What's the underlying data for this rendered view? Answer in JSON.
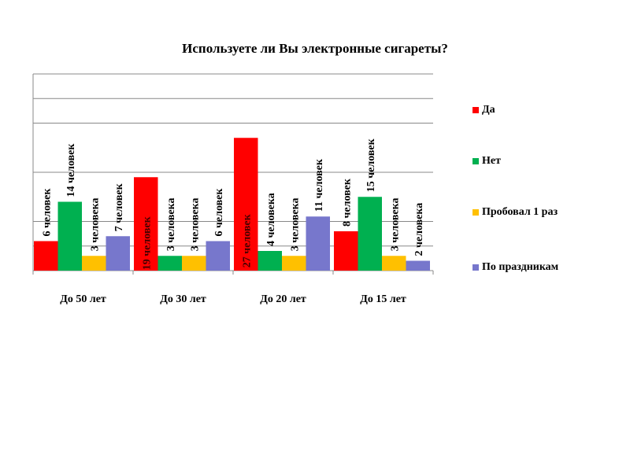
{
  "chart_data": {
    "type": "bar",
    "title": "Используете ли Вы электронные сигареты?",
    "categories": [
      "До 50 лет",
      "До 30 лет",
      "До 20 лет",
      "До 15 лет"
    ],
    "series": [
      {
        "name": "Да",
        "color": "#ff0000",
        "values": [
          6,
          19,
          27,
          8
        ],
        "labels": [
          "6 человек",
          "19 человек",
          "27 человек",
          "8 человек"
        ]
      },
      {
        "name": "Нет",
        "color": "#00b050",
        "values": [
          14,
          3,
          4,
          15
        ],
        "labels": [
          "14 человек",
          "3 человека",
          "4 человека",
          "15 человек"
        ]
      },
      {
        "name": "Пробовал 1 раз",
        "color": "#ffc000",
        "values": [
          3,
          3,
          3,
          3
        ],
        "labels": [
          "3 человека",
          "3 человека",
          "3 человека",
          "3 человека"
        ]
      },
      {
        "name": "По праздникам",
        "color": "#7777cc",
        "values": [
          7,
          6,
          11,
          2
        ],
        "labels": [
          "7 человек",
          "6 человек",
          "11 человек",
          "2 человека"
        ]
      }
    ],
    "gridlines": [
      5,
      10,
      20,
      30,
      35,
      40
    ],
    "ylim": [
      0,
      40
    ],
    "legend": "right",
    "xlabel": "",
    "ylabel": ""
  }
}
